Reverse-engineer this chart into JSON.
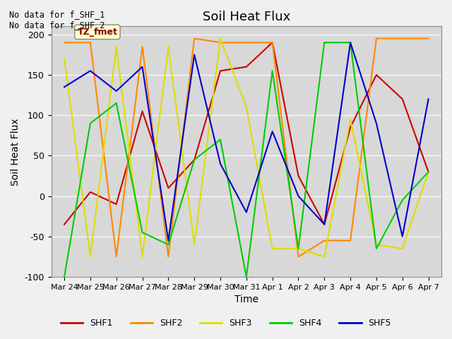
{
  "title": "Soil Heat Flux",
  "xlabel": "Time",
  "ylabel": "Soil Heat Flux",
  "ylim": [
    -100,
    210
  ],
  "yticks": [
    -100,
    -50,
    0,
    50,
    100,
    150,
    200
  ],
  "annotation_text": "No data for f_SHF_1\nNo data for f_SHF_2",
  "tz_label": "TZ_fmet",
  "plot_bg": "#d8d8d8",
  "fig_bg": "#f0f0f0",
  "xtick_labels": [
    "Mar 24",
    "Mar 25",
    "Mar 26",
    "Mar 27",
    "Mar 28",
    "Mar 29",
    "Mar 30",
    "Mar 31",
    "Apr 1",
    "Apr 2",
    "Apr 3",
    "Apr 4",
    "Apr 5",
    "Apr 6",
    "Apr 7"
  ],
  "SHF1": {
    "color": "#cc0000",
    "y": [
      -35,
      5,
      -10,
      105,
      10,
      45,
      155,
      160,
      190,
      25,
      -35,
      85,
      150,
      120,
      30
    ]
  },
  "SHF2": {
    "color": "#ff8800",
    "y": [
      190,
      190,
      -75,
      185,
      -75,
      195,
      190,
      190,
      190,
      -75,
      -55,
      -55,
      195,
      195,
      195
    ]
  },
  "SHF3": {
    "color": "#dddd00",
    "y": [
      170,
      -75,
      185,
      -75,
      185,
      -60,
      195,
      110,
      -65,
      -65,
      -75,
      95,
      -60,
      -65,
      30
    ]
  },
  "SHF4": {
    "color": "#00cc00",
    "y": [
      -100,
      90,
      115,
      -45,
      -60,
      45,
      70,
      -100,
      155,
      -65,
      190,
      190,
      -65,
      -5,
      30
    ]
  },
  "SHF5": {
    "color": "#0000cc",
    "y": [
      135,
      155,
      130,
      160,
      -55,
      175,
      40,
      -20,
      80,
      0,
      -35,
      190,
      90,
      -50,
      120
    ]
  },
  "legend_entries": [
    "SHF1",
    "SHF2",
    "SHF3",
    "SHF4",
    "SHF5"
  ],
  "legend_colors": [
    "#cc0000",
    "#ff8800",
    "#dddd00",
    "#00cc00",
    "#0000cc"
  ]
}
